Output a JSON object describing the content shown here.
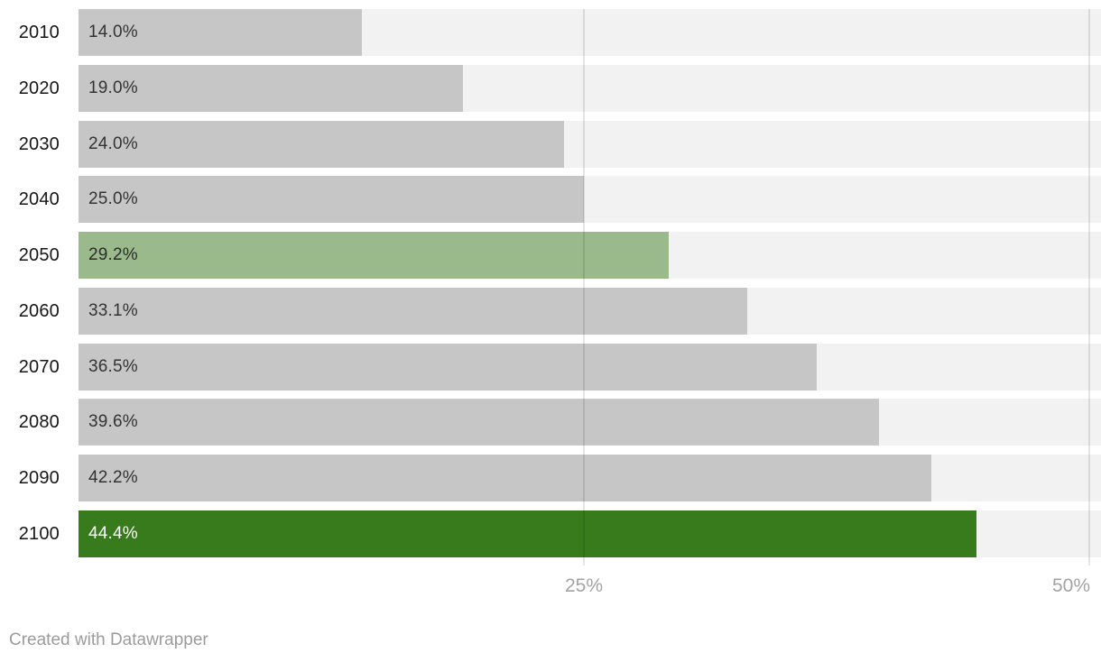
{
  "chart_data": {
    "type": "bar",
    "orientation": "horizontal",
    "title": "",
    "xlabel": "",
    "ylabel": "",
    "categories": [
      "2010",
      "2020",
      "2030",
      "2040",
      "2050",
      "2060",
      "2070",
      "2080",
      "2090",
      "2100"
    ],
    "values": [
      14.0,
      19.0,
      24.0,
      25.0,
      29.2,
      33.1,
      36.5,
      39.6,
      42.2,
      44.4
    ],
    "value_labels": [
      "14.0%",
      "19.0%",
      "24.0%",
      "25.0%",
      "29.2%",
      "33.1%",
      "36.5%",
      "39.6%",
      "42.2%",
      "44.4%"
    ],
    "bar_colors": [
      "#c6c6c6",
      "#c6c6c6",
      "#c6c6c6",
      "#c6c6c6",
      "#9aba8b",
      "#c6c6c6",
      "#c6c6c6",
      "#c6c6c6",
      "#c6c6c6",
      "#377b1d"
    ],
    "value_label_colors": [
      "#333333",
      "#333333",
      "#333333",
      "#333333",
      "#2c2c2c",
      "#333333",
      "#333333",
      "#333333",
      "#333333",
      "#ffffff"
    ],
    "highlighted_categories": [
      "2050",
      "2100"
    ],
    "x_ticks": [
      {
        "label": "25%",
        "value": 25,
        "align": "center"
      },
      {
        "label": "50%",
        "value": 50,
        "align": "right"
      }
    ],
    "xlim": [
      0,
      50.6
    ],
    "grid": true,
    "legend": null
  },
  "colors": {
    "background": "#ffffff",
    "track": "#f2f2f2",
    "gridline": "rgba(0,0,0,0.10)",
    "default_bar": "#c6c6c6",
    "highlight_light": "#9aba8b",
    "highlight_dark": "#377b1d",
    "year_label": "#161616",
    "tick_label": "#a3a3a3",
    "credit_text": "#9b9b9b"
  },
  "footer": {
    "credit": "Created with Datawrapper"
  }
}
